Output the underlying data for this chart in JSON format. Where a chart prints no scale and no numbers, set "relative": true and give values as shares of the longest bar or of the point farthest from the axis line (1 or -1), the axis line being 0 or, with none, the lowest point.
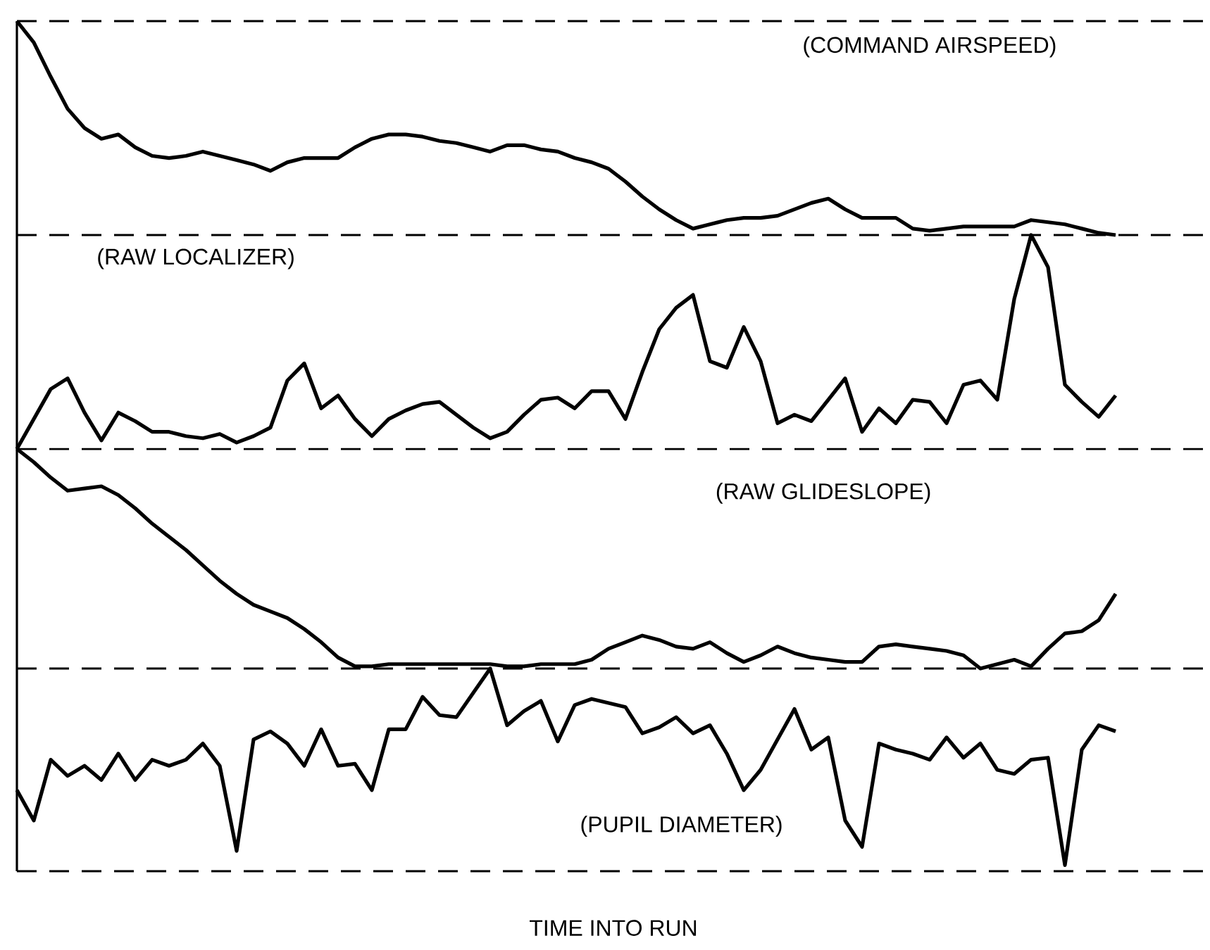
{
  "chart_data": [
    {
      "type": "line",
      "title": "(COMMAND AIRSPEED)",
      "relative": true,
      "color": "#000000",
      "categories": [
        null,
        null,
        null,
        null,
        null,
        null,
        null,
        null,
        null,
        null,
        null,
        null,
        null,
        null,
        null,
        null,
        null,
        null,
        null,
        null,
        null,
        null,
        null,
        null,
        null,
        null,
        null,
        null,
        null,
        null,
        null,
        null,
        null,
        null,
        null,
        null,
        null,
        null,
        null,
        null,
        null,
        null,
        null,
        null,
        null,
        null,
        null,
        null,
        null,
        null,
        null,
        null,
        null,
        null,
        null,
        null,
        null,
        null,
        null,
        null,
        null,
        null,
        null,
        null,
        null,
        null,
        null,
        null,
        null,
        null,
        null
      ],
      "values": [
        1.0,
        0.9,
        0.74,
        0.59,
        0.5,
        0.45,
        0.47,
        0.41,
        0.37,
        0.36,
        0.37,
        0.39,
        0.37,
        0.35,
        0.33,
        0.3,
        0.34,
        0.36,
        0.36,
        0.36,
        0.41,
        0.45,
        0.47,
        0.47,
        0.46,
        0.44,
        0.43,
        0.41,
        0.39,
        0.42,
        0.42,
        0.4,
        0.39,
        0.36,
        0.34,
        0.31,
        0.25,
        0.18,
        0.12,
        0.07,
        0.03,
        0.05,
        0.07,
        0.08,
        0.08,
        0.09,
        0.12,
        0.15,
        0.17,
        0.12,
        0.08,
        0.08,
        0.08,
        0.03,
        0.02,
        0.03,
        0.04,
        0.04,
        0.04,
        0.04,
        0.07,
        0.06,
        0.05,
        0.03,
        0.01,
        0.0,
        null,
        null,
        null,
        null,
        null
      ]
    },
    {
      "type": "line",
      "title": "(RAW LOCALIZER)",
      "relative": true,
      "color": "#000000",
      "categories": [
        null,
        null,
        null,
        null,
        null,
        null,
        null,
        null,
        null,
        null,
        null,
        null,
        null,
        null,
        null,
        null,
        null,
        null,
        null,
        null,
        null,
        null,
        null,
        null,
        null,
        null,
        null,
        null,
        null,
        null,
        null,
        null,
        null,
        null,
        null,
        null,
        null,
        null,
        null,
        null,
        null,
        null,
        null,
        null,
        null,
        null,
        null,
        null,
        null,
        null,
        null,
        null,
        null,
        null,
        null,
        null,
        null,
        null,
        null,
        null,
        null,
        null,
        null,
        null,
        null,
        null,
        null,
        null,
        null,
        null,
        null
      ],
      "values": [
        0.0,
        0.14,
        0.28,
        0.33,
        0.17,
        0.04,
        0.17,
        0.13,
        0.08,
        0.08,
        0.06,
        0.05,
        0.07,
        0.03,
        0.06,
        0.1,
        0.32,
        0.4,
        0.19,
        0.25,
        0.14,
        0.06,
        0.14,
        0.18,
        0.21,
        0.22,
        0.16,
        0.1,
        0.05,
        0.08,
        0.16,
        0.23,
        0.24,
        0.19,
        0.27,
        0.27,
        0.14,
        0.36,
        0.56,
        0.66,
        0.72,
        0.41,
        0.38,
        0.57,
        0.41,
        0.12,
        0.16,
        0.13,
        0.23,
        0.33,
        0.08,
        0.19,
        0.12,
        0.23,
        0.22,
        0.12,
        0.3,
        0.32,
        0.23,
        0.7,
        1.0,
        0.85,
        0.3,
        0.22,
        0.15,
        0.25,
        null,
        null,
        null,
        null,
        null
      ]
    },
    {
      "type": "line",
      "title": "(RAW GLIDESLOPE)",
      "relative": true,
      "color": "#000000",
      "categories": [
        null,
        null,
        null,
        null,
        null,
        null,
        null,
        null,
        null,
        null,
        null,
        null,
        null,
        null,
        null,
        null,
        null,
        null,
        null,
        null,
        null,
        null,
        null,
        null,
        null,
        null,
        null,
        null,
        null,
        null,
        null,
        null,
        null,
        null,
        null,
        null,
        null,
        null,
        null,
        null,
        null,
        null,
        null,
        null,
        null,
        null,
        null,
        null,
        null,
        null,
        null,
        null,
        null,
        null,
        null,
        null,
        null,
        null,
        null,
        null,
        null,
        null,
        null,
        null,
        null,
        null,
        null,
        null,
        null,
        null,
        null
      ],
      "values": [
        1.0,
        0.94,
        0.87,
        0.81,
        0.82,
        0.83,
        0.79,
        0.73,
        0.66,
        0.6,
        0.54,
        0.47,
        0.4,
        0.34,
        0.29,
        0.26,
        0.23,
        0.18,
        0.12,
        0.05,
        0.01,
        0.01,
        0.02,
        0.02,
        0.02,
        0.02,
        0.02,
        0.02,
        0.02,
        0.01,
        0.01,
        0.02,
        0.02,
        0.02,
        0.04,
        0.09,
        0.12,
        0.15,
        0.13,
        0.1,
        0.09,
        0.12,
        0.07,
        0.03,
        0.06,
        0.1,
        0.07,
        0.05,
        0.04,
        0.03,
        0.03,
        0.1,
        0.11,
        0.1,
        0.09,
        0.08,
        0.06,
        0.0,
        0.02,
        0.04,
        0.01,
        0.09,
        0.16,
        0.17,
        0.22,
        0.34,
        null,
        null,
        null,
        null,
        null
      ]
    },
    {
      "type": "line",
      "title": "(PUPIL DIAMETER)",
      "xlabel": "TIME INTO RUN",
      "relative": true,
      "color": "#000000",
      "categories": [
        null,
        null,
        null,
        null,
        null,
        null,
        null,
        null,
        null,
        null,
        null,
        null,
        null,
        null,
        null,
        null,
        null,
        null,
        null,
        null,
        null,
        null,
        null,
        null,
        null,
        null,
        null,
        null,
        null,
        null,
        null,
        null,
        null,
        null,
        null,
        null,
        null,
        null,
        null,
        null,
        null,
        null,
        null,
        null,
        null,
        null,
        null,
        null,
        null,
        null,
        null,
        null,
        null,
        null,
        null,
        null,
        null,
        null,
        null,
        null,
        null,
        null,
        null,
        null,
        null,
        null,
        null,
        null,
        null,
        null,
        null
      ],
      "values": [
        0.4,
        0.25,
        0.55,
        0.47,
        0.52,
        0.45,
        0.58,
        0.45,
        0.55,
        0.52,
        0.55,
        0.63,
        0.52,
        0.1,
        0.65,
        0.69,
        0.63,
        0.52,
        0.7,
        0.52,
        0.53,
        0.4,
        0.7,
        0.7,
        0.86,
        0.77,
        0.76,
        0.88,
        1.0,
        0.72,
        0.79,
        0.84,
        0.64,
        0.82,
        0.85,
        0.83,
        0.81,
        0.68,
        0.71,
        0.76,
        0.68,
        0.72,
        0.58,
        0.4,
        0.5,
        0.65,
        0.8,
        0.6,
        0.66,
        0.25,
        0.12,
        0.63,
        0.6,
        0.58,
        0.55,
        0.66,
        0.56,
        0.63,
        0.5,
        0.48,
        0.55,
        0.56,
        0.03,
        0.6,
        0.72,
        0.69,
        null,
        null,
        null,
        null,
        null
      ]
    }
  ]
}
